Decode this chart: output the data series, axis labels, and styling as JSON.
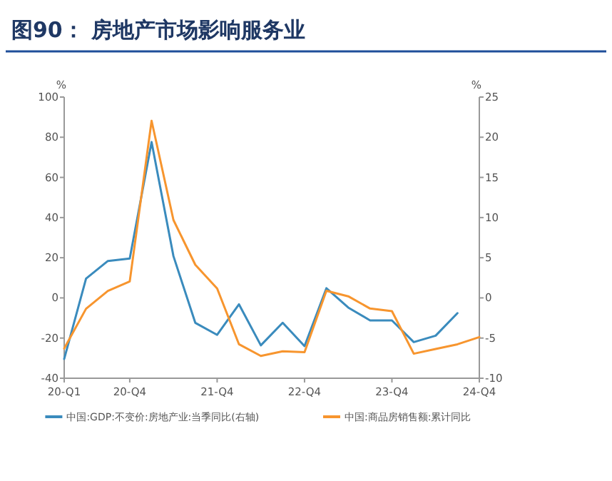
{
  "chart_data": {
    "type": "line",
    "title": "图90：  房地产市场影响服务业",
    "ylabel": "%",
    "y2label": "%",
    "categories": [
      "20-Q1",
      null,
      null,
      "20-Q4",
      null,
      null,
      null,
      "21-Q4",
      null,
      null,
      null,
      "22-Q4",
      null,
      null,
      null,
      "23-Q4",
      null,
      null,
      null,
      "24-Q4"
    ],
    "series": [
      {
        "name": "中国:GDP:不变价:房地产业:当季同比(右轴)",
        "color": "#3a8bbd",
        "axis": "y2",
        "values": [
          -7.6,
          2.4,
          4.6,
          4.9,
          19.4,
          5.2,
          -3.1,
          -4.6,
          -0.8,
          -5.9,
          -3.1,
          -6.0,
          1.2,
          -1.2,
          -2.8,
          -2.8,
          -5.5,
          -4.7,
          -1.9,
          null
        ]
      },
      {
        "name": "中国:商品房销售额:累计同比",
        "color": "#f7952e",
        "values": [
          -25.2,
          -5.4,
          3.5,
          8.2,
          88.2,
          38.8,
          16.5,
          4.7,
          -23.1,
          -28.9,
          -26.6,
          -27,
          3.5,
          0.8,
          -5.3,
          -6.6,
          -27.8,
          -25.4,
          -23.1,
          -19.5
        ]
      }
    ],
    "ylim": [
      -40,
      100
    ],
    "yticks": [
      -40,
      -20,
      0,
      20,
      40,
      60,
      80,
      100
    ],
    "y2lim": [
      -10,
      25
    ],
    "y2ticks": [
      -10,
      -5,
      0,
      5,
      10,
      15,
      20,
      25
    ],
    "legend": "bottom",
    "marker": "none",
    "line_style": "solid"
  }
}
